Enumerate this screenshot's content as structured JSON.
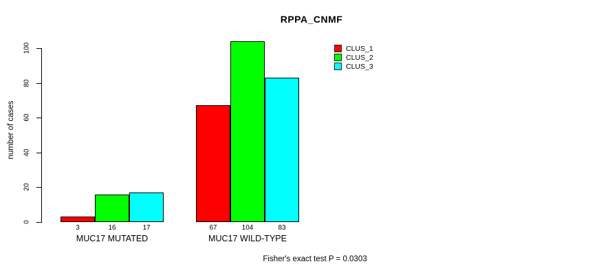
{
  "chart_data": {
    "type": "bar",
    "title": "RPPA_CNMF",
    "xlabel": "",
    "ylabel": "number of cases",
    "categories": [
      "MUC17 MUTATED",
      "MUC17 WILD-TYPE"
    ],
    "series": [
      {
        "name": "CLUS_1",
        "color": "#ff0000",
        "values": [
          3,
          67
        ]
      },
      {
        "name": "CLUS_2",
        "color": "#00ff00",
        "values": [
          16,
          104
        ]
      },
      {
        "name": "CLUS_3",
        "color": "#00ffff",
        "values": [
          17,
          83
        ]
      }
    ],
    "yticks": [
      0,
      20,
      40,
      60,
      80,
      100
    ],
    "ylim": [
      0,
      100
    ],
    "bar_value_labels": [
      [
        "3",
        "16",
        "17"
      ],
      [
        "67",
        "104",
        "83"
      ]
    ],
    "legend_position": "top-right",
    "grid": false
  },
  "footer": {
    "note": "Fisher's exact test P = 0.0303"
  },
  "colors": {
    "background": "#ffffff",
    "axis": "#000000",
    "text": "#000000",
    "bar_border": "#000000",
    "clus_1": "#ff0000",
    "clus_2": "#00ff00",
    "clus_3": "#00ffff"
  }
}
